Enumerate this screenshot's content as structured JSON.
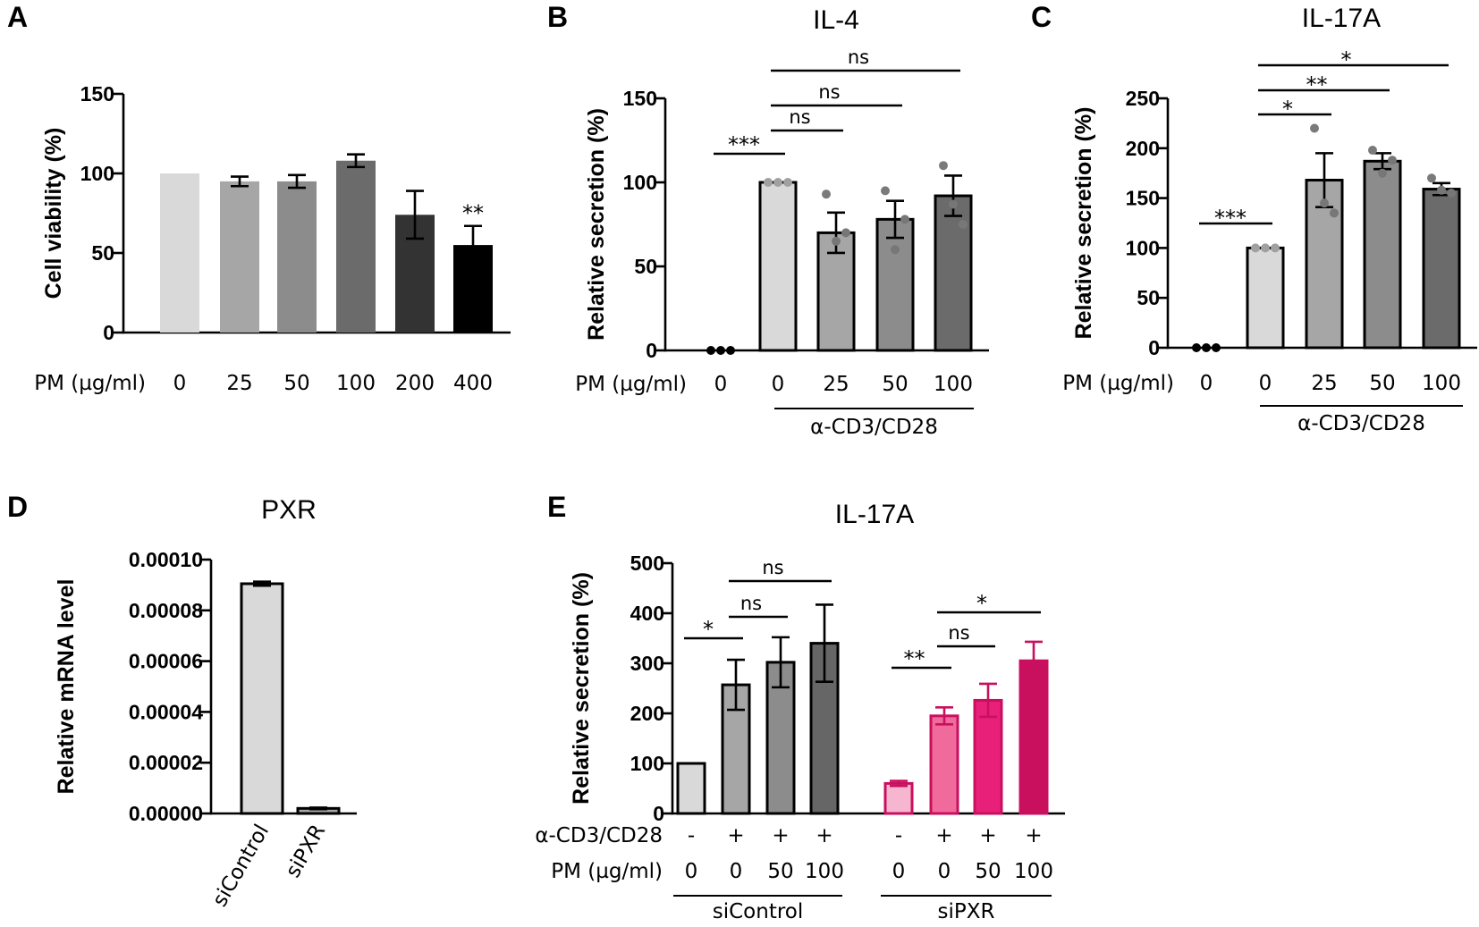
{
  "chart_data": [
    {
      "id": "A",
      "type": "bar",
      "letter": "A",
      "title": "",
      "ylabel": "Cell viability (%)",
      "ylim": [
        0,
        150
      ],
      "yticks": [
        "0",
        "50",
        "100",
        "150"
      ],
      "xrow_label": "PM (µg/ml)",
      "categories": [
        "0",
        "25",
        "50",
        "100",
        "200",
        "400"
      ],
      "values": [
        100,
        95,
        95,
        108,
        74,
        55
      ],
      "errors": [
        0,
        3,
        4,
        4,
        15,
        12
      ],
      "bar_colors": [
        "#d9d9d9",
        "#a6a6a6",
        "#8c8c8c",
        "#6b6b6b",
        "#333333",
        "#000000"
      ],
      "annotations": [
        {
          "category": "400",
          "text": "**"
        }
      ]
    },
    {
      "id": "B",
      "type": "bar",
      "letter": "B",
      "title": "IL-4",
      "ylabel": "Relative secretion (%)",
      "ylim": [
        0,
        150
      ],
      "yticks": [
        "0",
        "50",
        "100",
        "150"
      ],
      "xrow_label": "PM (µg/ml)",
      "categories": [
        "0",
        "0",
        "25",
        "50",
        "100"
      ],
      "values": [
        0,
        100,
        70,
        78,
        92
      ],
      "errors": [
        0,
        0,
        12,
        11,
        12
      ],
      "points": [
        [
          0,
          0,
          0
        ],
        [
          100,
          100,
          100
        ],
        [
          93,
          65,
          70
        ],
        [
          95,
          60,
          78
        ],
        [
          110,
          87,
          75
        ]
      ],
      "bar_colors": [
        "#ffffff",
        "#d9d9d9",
        "#a6a6a6",
        "#8c8c8c",
        "#6b6b6b"
      ],
      "group_label": "α-CD3/CD28",
      "significance": [
        {
          "from": 0,
          "to": 1,
          "text": "***"
        },
        {
          "from": 1,
          "to": 2,
          "text": "ns"
        },
        {
          "from": 1,
          "to": 3,
          "text": "ns"
        },
        {
          "from": 1,
          "to": 4,
          "text": "ns"
        }
      ]
    },
    {
      "id": "C",
      "type": "bar",
      "letter": "C",
      "title": "IL-17A",
      "ylabel": "Relative secretion (%)",
      "ylim": [
        0,
        250
      ],
      "yticks": [
        "0",
        "50",
        "100",
        "150",
        "200",
        "250"
      ],
      "xrow_label": "PM (µg/ml)",
      "categories": [
        "0",
        "0",
        "25",
        "50",
        "100"
      ],
      "values": [
        0,
        100,
        168,
        187,
        159
      ],
      "errors": [
        0,
        0,
        27,
        8,
        6
      ],
      "points": [
        [
          0,
          0,
          0
        ],
        [
          100,
          100,
          100
        ],
        [
          220,
          145,
          135
        ],
        [
          198,
          175,
          188
        ],
        [
          170,
          158,
          155
        ]
      ],
      "bar_colors": [
        "#ffffff",
        "#d9d9d9",
        "#a6a6a6",
        "#8c8c8c",
        "#6b6b6b"
      ],
      "group_label": "α-CD3/CD28",
      "significance": [
        {
          "from": 0,
          "to": 1,
          "text": "***"
        },
        {
          "from": 1,
          "to": 2,
          "text": "*"
        },
        {
          "from": 1,
          "to": 3,
          "text": "**"
        },
        {
          "from": 1,
          "to": 4,
          "text": "*"
        }
      ]
    },
    {
      "id": "D",
      "type": "bar",
      "letter": "D",
      "title": "PXR",
      "ylabel": "Relative mRNA level",
      "ylim": [
        0,
        0.0001
      ],
      "yticks": [
        "0.00000",
        "0.00002",
        "0.00004",
        "0.00006",
        "0.00008",
        "0.00010"
      ],
      "categories": [
        "siControl",
        "siPXR"
      ],
      "values": [
        9.05e-05,
        2e-06
      ],
      "errors": [
        8e-07,
        3e-07
      ],
      "bar_colors": [
        "#d9d9d9",
        "#a6a6a6"
      ]
    },
    {
      "id": "E",
      "type": "bar",
      "letter": "E",
      "title": "IL-17A",
      "ylabel": "Relative secretion (%)",
      "ylim": [
        0,
        500
      ],
      "yticks": [
        "0",
        "100",
        "200",
        "300",
        "400",
        "500"
      ],
      "row1_label": "α-CD3/CD28",
      "row2_label": "PM (µg/ml)",
      "stim": [
        "-",
        "+",
        "+",
        "+",
        "-",
        "+",
        "+",
        "+"
      ],
      "categories": [
        "0",
        "0",
        "50",
        "100",
        "0",
        "0",
        "50",
        "100"
      ],
      "values": [
        100,
        257,
        302,
        340,
        60,
        195,
        226,
        305
      ],
      "errors": [
        0,
        50,
        50,
        77,
        5,
        17,
        33,
        38
      ],
      "bar_colors": [
        "#d9d9d9",
        "#a6a6a6",
        "#8c8c8c",
        "#666666",
        "#f7b6cf",
        "#f06b9b",
        "#e8207a",
        "#c9105f"
      ],
      "edge_colors": [
        "#000000",
        "#000000",
        "#000000",
        "#000000",
        "#c9105f",
        "#c9105f",
        "#c9105f",
        "#c9105f"
      ],
      "groups": [
        {
          "label": "siControl",
          "from": 0,
          "to": 3
        },
        {
          "label": "siPXR",
          "from": 4,
          "to": 7
        }
      ],
      "significance": [
        {
          "from": 0,
          "to": 1,
          "text": "*"
        },
        {
          "from": 1,
          "to": 2,
          "text": "ns"
        },
        {
          "from": 1,
          "to": 3,
          "text": "ns"
        },
        {
          "from": 4,
          "to": 5,
          "text": "**"
        },
        {
          "from": 5,
          "to": 6,
          "text": "ns"
        },
        {
          "from": 5,
          "to": 7,
          "text": "*"
        }
      ]
    }
  ]
}
